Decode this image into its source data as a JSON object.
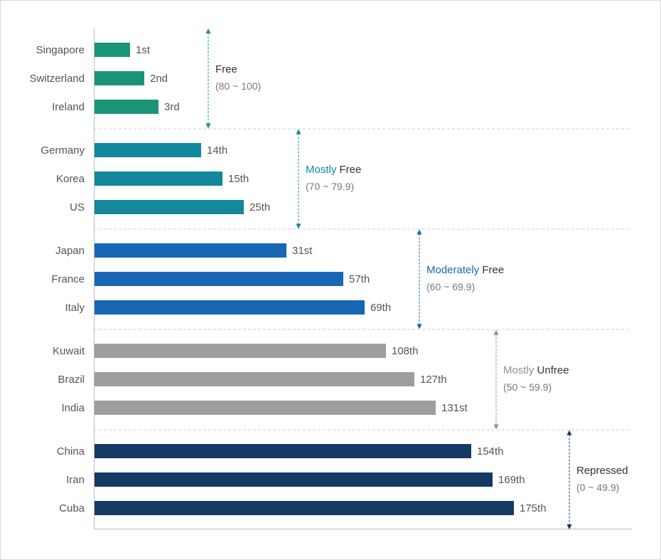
{
  "chart_data": {
    "type": "bar",
    "orientation": "horizontal",
    "title": "",
    "xlabel": "",
    "ylabel": "",
    "value_meaning": "rank",
    "xlim": [
      0,
      200
    ],
    "categories": [
      "Singapore",
      "Switzerland",
      "Ireland",
      "Germany",
      "Korea",
      "US",
      "Japan",
      "France",
      "Italy",
      "Kuwait",
      "Brazil",
      "India",
      "China",
      "Iran",
      "Cuba"
    ],
    "values": [
      1,
      2,
      3,
      14,
      15,
      25,
      31,
      57,
      69,
      108,
      127,
      131,
      154,
      169,
      175
    ],
    "value_labels": [
      "1st",
      "2nd",
      "3rd",
      "14th",
      "15th",
      "25th",
      "31st",
      "57th",
      "69th",
      "108th",
      "127th",
      "131st",
      "154th",
      "169th",
      "175th"
    ],
    "bar_lengths_relative": [
      0.25,
      0.35,
      0.45,
      0.75,
      0.9,
      1.05,
      1.35,
      1.75,
      1.9,
      2.05,
      2.25,
      2.4,
      2.65,
      2.8,
      2.95
    ],
    "groups": [
      {
        "name_prefix": "",
        "name_main": "Free",
        "range": "(80 ~ 100)",
        "color": "#1a9478",
        "accent": "#1a9478",
        "members": [
          0,
          1,
          2
        ]
      },
      {
        "name_prefix": "Mostly ",
        "name_main": "Free",
        "range": "(70 ~ 79.9)",
        "color": "#13879c",
        "accent": "#13879c",
        "members": [
          3,
          4,
          5
        ]
      },
      {
        "name_prefix": "Moderately ",
        "name_main": "Free",
        "range": "(60 ~ 69.9)",
        "color": "#1767b3",
        "accent": "#1767b3",
        "members": [
          6,
          7,
          8
        ]
      },
      {
        "name_prefix": "Mostly ",
        "name_main": "Unfree",
        "range": "(50 ~ 59.9)",
        "color": "#9e9e9e",
        "accent": "#8f8f8f",
        "members": [
          9,
          10,
          11
        ]
      },
      {
        "name_prefix": "",
        "name_main": "Repressed",
        "range": "(0 ~ 49.9)",
        "color": "#143963",
        "accent": "#143963",
        "members": [
          12,
          13,
          14
        ]
      }
    ]
  }
}
